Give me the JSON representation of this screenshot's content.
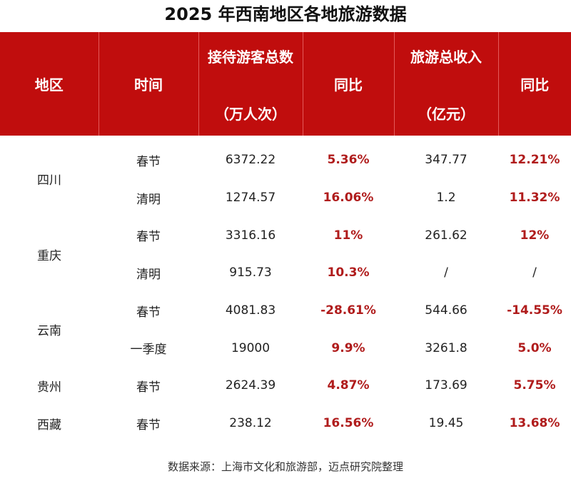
{
  "title": "2025 年西南地区各地旅游数据",
  "headers": {
    "region": "地区",
    "time": "时间",
    "visitors_top": "接待游客总数",
    "visitors_unit": "（万人次）",
    "visitors_yoy": "同比",
    "income_top": "旅游总收入",
    "income_unit": "（亿元）",
    "income_yoy": "同比"
  },
  "rows": [
    {
      "region": "四川",
      "time": "春节",
      "visitors": "6372.22",
      "visitors_yoy": "5.36%",
      "income": "347.77",
      "income_yoy": "12.21%"
    },
    {
      "region": "",
      "time": "清明",
      "visitors": "1274.57",
      "visitors_yoy": "16.06%",
      "income": "1.2",
      "income_yoy": "11.32%"
    },
    {
      "region": "重庆",
      "time": "春节",
      "visitors": "3316.16",
      "visitors_yoy": "11%",
      "income": "261.62",
      "income_yoy": "12%"
    },
    {
      "region": "",
      "time": "清明",
      "visitors": "915.73",
      "visitors_yoy": "10.3%",
      "income": "/",
      "income_yoy": "/"
    },
    {
      "region": "云南",
      "time": "春节",
      "visitors": "4081.83",
      "visitors_yoy": "-28.61%",
      "income": "544.66",
      "income_yoy": "-14.55%"
    },
    {
      "region": "",
      "time": "一季度",
      "visitors": "19000",
      "visitors_yoy": "9.9%",
      "income": "3261.8",
      "income_yoy": "5.0%"
    },
    {
      "region": "贵州",
      "time": "春节",
      "visitors": "2624.39",
      "visitors_yoy": "4.87%",
      "income": "173.69",
      "income_yoy": "5.75%"
    },
    {
      "region": "西藏",
      "time": "春节",
      "visitors": "238.12",
      "visitors_yoy": "16.56%",
      "income": "19.45",
      "income_yoy": "13.68%"
    }
  ],
  "source": "数据来源：上海市文化和旅游部，迈点研究院整理",
  "colors": {
    "header_bg": "#c00d0d",
    "yoy_text": "#b01c1c"
  }
}
